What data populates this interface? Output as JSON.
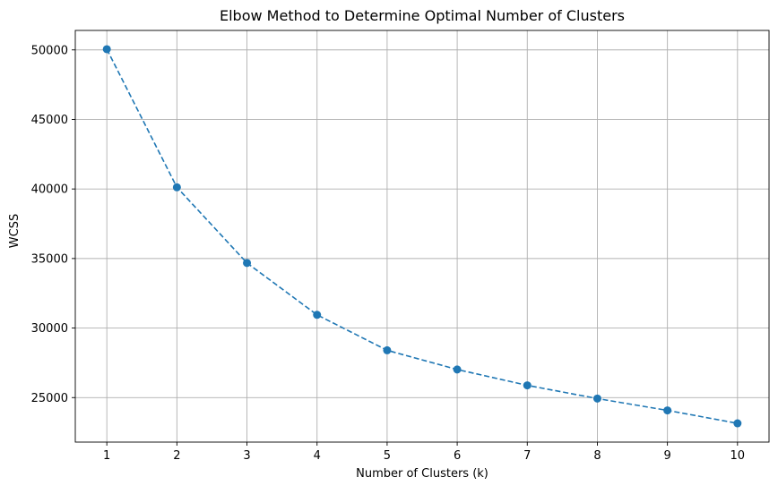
{
  "chart_data": {
    "type": "line",
    "title": "Elbow Method to Determine Optimal Number of Clusters",
    "xlabel": "Number of Clusters (k)",
    "ylabel": "WCSS",
    "x": [
      1,
      2,
      3,
      4,
      5,
      6,
      7,
      8,
      9,
      10
    ],
    "series": [
      {
        "values": [
          50050,
          40120,
          34680,
          30950,
          28400,
          27020,
          25880,
          24930,
          24080,
          23150
        ],
        "color": "#1f77b4",
        "line_style": "dashed",
        "marker": "circle"
      }
    ],
    "xlim": [
      0.55,
      10.45
    ],
    "ylim": [
      21800,
      51400
    ],
    "xticks": [
      1,
      2,
      3,
      4,
      5,
      6,
      7,
      8,
      9,
      10
    ],
    "yticks": [
      25000,
      30000,
      35000,
      40000,
      45000,
      50000
    ],
    "grid": true,
    "legend": "none"
  }
}
